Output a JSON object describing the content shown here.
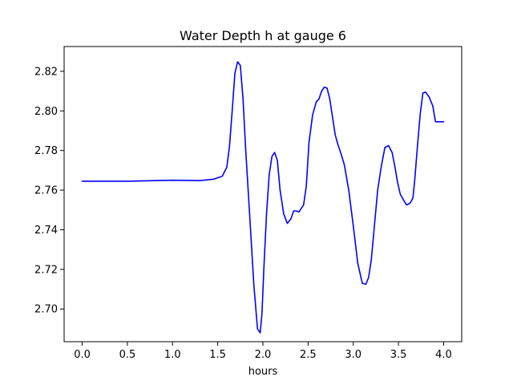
{
  "chart_data": {
    "type": "line",
    "title": "Water Depth h at gauge 6",
    "xlabel": "hours",
    "ylabel": "",
    "xlim": [
      -0.2,
      4.2
    ],
    "ylim": [
      2.6835,
      2.8325
    ],
    "xticks": [
      0.0,
      0.5,
      1.0,
      1.5,
      2.0,
      2.5,
      3.0,
      3.5,
      4.0
    ],
    "xtick_labels": [
      "0.0",
      "0.5",
      "1.0",
      "1.5",
      "2.0",
      "2.5",
      "3.0",
      "3.5",
      "4.0"
    ],
    "yticks": [
      2.7,
      2.72,
      2.74,
      2.76,
      2.78,
      2.8,
      2.82
    ],
    "ytick_labels": [
      "2.70",
      "2.72",
      "2.74",
      "2.76",
      "2.78",
      "2.80",
      "2.82"
    ],
    "grid": false,
    "series": [
      {
        "color": "#0000ff",
        "x": [
          0.0,
          0.5,
          1.0,
          1.3,
          1.45,
          1.55,
          1.6,
          1.63,
          1.66,
          1.69,
          1.72,
          1.75,
          1.78,
          1.81,
          1.85,
          1.9,
          1.94,
          1.97,
          1.99,
          2.01,
          2.04,
          2.07,
          2.1,
          2.13,
          2.16,
          2.19,
          2.23,
          2.27,
          2.31,
          2.34,
          2.37,
          2.4,
          2.42,
          2.45,
          2.48,
          2.51,
          2.55,
          2.59,
          2.62,
          2.65,
          2.68,
          2.71,
          2.74,
          2.77,
          2.8,
          2.83,
          2.86,
          2.9,
          2.95,
          3.0,
          3.05,
          3.1,
          3.14,
          3.17,
          3.2,
          3.23,
          3.27,
          3.31,
          3.35,
          3.39,
          3.43,
          3.46,
          3.49,
          3.52,
          3.55,
          3.59,
          3.63,
          3.66,
          3.68,
          3.71,
          3.74,
          3.77,
          3.8,
          3.84,
          3.88,
          3.91,
          3.94,
          3.97,
          4.0
        ],
        "y": [
          2.7645,
          2.7645,
          2.765,
          2.7648,
          2.7655,
          2.767,
          2.7715,
          2.782,
          2.8,
          2.819,
          2.8248,
          2.823,
          2.806,
          2.78,
          2.75,
          2.712,
          2.69,
          2.688,
          2.698,
          2.72,
          2.748,
          2.768,
          2.777,
          2.779,
          2.775,
          2.76,
          2.748,
          2.7432,
          2.7455,
          2.7495,
          2.7495,
          2.749,
          2.7505,
          2.7525,
          2.762,
          2.784,
          2.798,
          2.8045,
          2.806,
          2.81,
          2.812,
          2.8115,
          2.806,
          2.797,
          2.788,
          2.783,
          2.779,
          2.773,
          2.76,
          2.742,
          2.723,
          2.713,
          2.7125,
          2.716,
          2.725,
          2.74,
          2.76,
          2.772,
          2.7815,
          2.7825,
          2.779,
          2.772,
          2.764,
          2.758,
          2.7555,
          2.7525,
          2.7535,
          2.756,
          2.765,
          2.782,
          2.798,
          2.809,
          2.8095,
          2.807,
          2.8025,
          2.7945,
          2.7945,
          2.7945,
          2.7945
        ]
      }
    ]
  }
}
